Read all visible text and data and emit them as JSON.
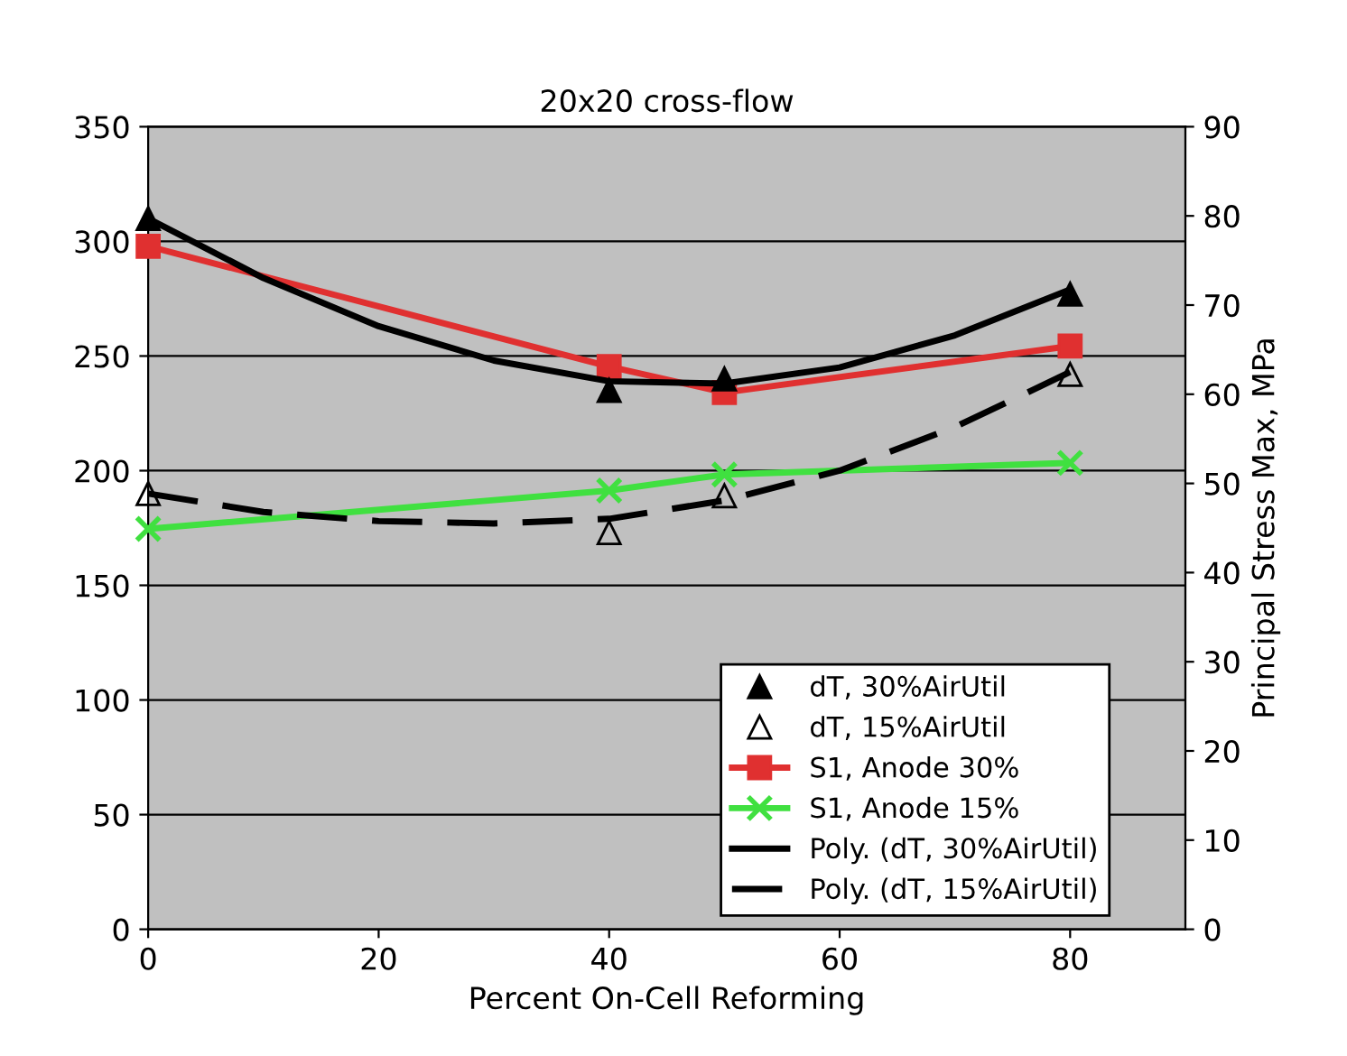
{
  "chart_data": {
    "type": "line",
    "title": "20x20 cross-flow",
    "xlabel": "Percent On-Cell Reforming",
    "y2label": "Principal Stress Max, MPa",
    "xlim": [
      0,
      90
    ],
    "xticks": [
      0,
      20,
      40,
      60,
      80
    ],
    "ylim": [
      0,
      350
    ],
    "yticks": [
      0,
      50,
      100,
      150,
      200,
      250,
      300,
      350
    ],
    "y2lim": [
      0,
      90
    ],
    "y2ticks": [
      0,
      10,
      20,
      30,
      40,
      50,
      60,
      70,
      80,
      90
    ],
    "grid": "y",
    "legend": "bottom right",
    "series": [
      {
        "name": "dT, 30%AirUtil",
        "type": "scatter",
        "marker": "triangle",
        "color": "#000000",
        "x": [
          0,
          40,
          50,
          80
        ],
        "values": [
          310,
          235,
          240,
          277
        ]
      },
      {
        "name": "dT, 15%AirUtil",
        "type": "scatter",
        "marker": "triangle",
        "color": "#000000",
        "x": [
          0,
          40,
          50,
          80
        ],
        "values": [
          190,
          173,
          189,
          242
        ]
      },
      {
        "name": "S1, Anode 30%",
        "axis": "y2",
        "marker": "square",
        "color": "#e03030",
        "x": [
          0,
          40,
          50,
          80
        ],
        "values": [
          76.6,
          63.1,
          60.2,
          65.4
        ]
      },
      {
        "name": "S1, Anode 15%",
        "axis": "y2",
        "marker": "cross",
        "color": "#40e040",
        "x": [
          0,
          40,
          50,
          80
        ],
        "values": [
          44.9,
          49.2,
          51.0,
          52.3
        ]
      },
      {
        "name": "Poly. (dT, 30%AirUtil)",
        "marker": "none",
        "line_style": "solid",
        "color": "#000000",
        "x": [
          0,
          10,
          20,
          30,
          40,
          50,
          60,
          70,
          80
        ],
        "values": [
          310,
          284,
          263,
          248,
          239,
          238,
          245,
          259,
          279
        ]
      },
      {
        "name": "Poly. (dT, 15%AirUtil)",
        "marker": "none",
        "line_style": "dashed",
        "color": "#000000",
        "x": [
          0,
          10,
          20,
          30,
          40,
          50,
          60,
          70,
          80
        ],
        "values": [
          190,
          182,
          178,
          177,
          179,
          187,
          200,
          219,
          243
        ]
      }
    ]
  }
}
